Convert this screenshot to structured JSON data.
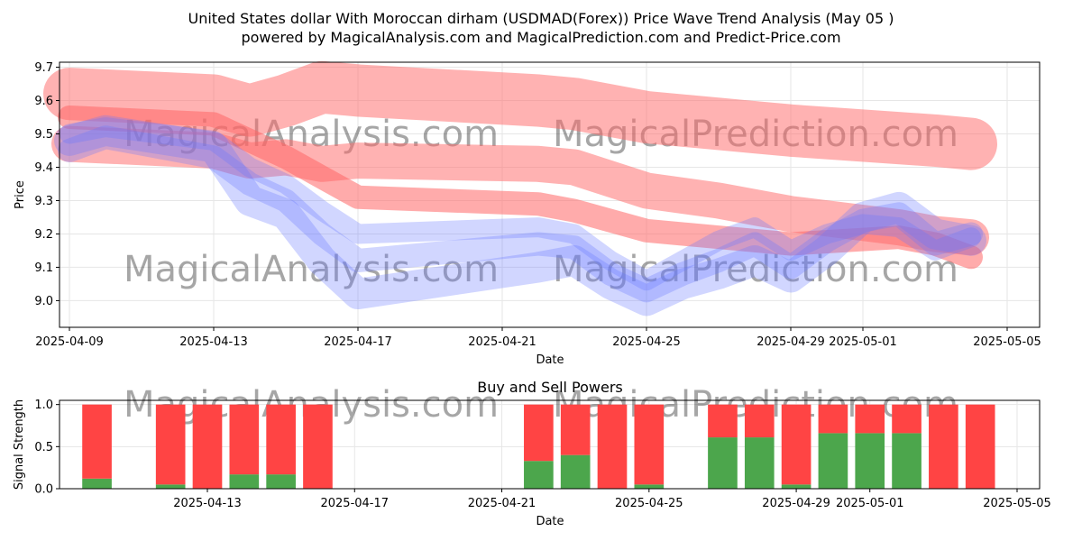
{
  "title_line1": "United States dollar With Moroccan dirham (USDMAD(Forex)) Price Wave Trend Analysis (May 05 )",
  "title_line2": "powered by MagicalAnalysis.com and MagicalPrediction.com and Predict-Price.com",
  "watermarks": [
    "MagicalAnalysis.com",
    "MagicalPrediction.com"
  ],
  "colors": {
    "upper_band": "#ff6666",
    "lower_band": "#6677ff",
    "buy": "#4ca64c",
    "sell": "#ff4444"
  },
  "chart_data": [
    {
      "type": "area",
      "title": "",
      "xlabel": "Date",
      "ylabel": "Price",
      "x_ticks": [
        "2025-04-09",
        "2025-04-13",
        "2025-04-17",
        "2025-04-21",
        "2025-04-25",
        "2025-04-29",
        "2025-05-01",
        "2025-05-05"
      ],
      "y_ticks": [
        9.0,
        9.1,
        9.2,
        9.3,
        9.4,
        9.5,
        9.6,
        9.7
      ],
      "ylim": [
        8.92,
        9.715
      ],
      "xlim": [
        "2025-04-09",
        "2025-05-05"
      ],
      "grid": true,
      "red_bands": [
        {
          "x": [
            "2025-04-09",
            "2025-04-13",
            "2025-04-14",
            "2025-04-15",
            "2025-04-16",
            "2025-04-17",
            "2025-04-22",
            "2025-04-23",
            "2025-04-25",
            "2025-04-27",
            "2025-04-28",
            "2025-04-29",
            "2025-05-03",
            "2025-05-04"
          ],
          "y": [
            9.62,
            9.6,
            9.57,
            9.6,
            9.64,
            9.63,
            9.6,
            9.59,
            9.55,
            9.53,
            9.52,
            9.51,
            9.48,
            9.47
          ]
        },
        {
          "x": [
            "2025-04-09",
            "2025-04-13",
            "2025-04-14",
            "2025-04-15",
            "2025-04-16",
            "2025-04-17",
            "2025-04-22",
            "2025-04-23",
            "2025-04-25",
            "2025-04-27",
            "2025-04-28",
            "2025-04-29",
            "2025-05-02",
            "2025-05-03",
            "2025-05-04"
          ],
          "y": [
            9.47,
            9.45,
            9.42,
            9.43,
            9.41,
            9.42,
            9.41,
            9.4,
            9.33,
            9.3,
            9.28,
            9.26,
            9.22,
            9.2,
            9.19
          ]
        },
        {
          "x": [
            "2025-04-09",
            "2025-04-13",
            "2025-04-14",
            "2025-04-15",
            "2025-04-16",
            "2025-04-17",
            "2025-04-22",
            "2025-04-23",
            "2025-04-25",
            "2025-04-29",
            "2025-05-02",
            "2025-05-03",
            "2025-05-04"
          ],
          "y": [
            9.55,
            9.53,
            9.48,
            9.43,
            9.37,
            9.31,
            9.29,
            9.27,
            9.21,
            9.17,
            9.19,
            9.17,
            9.13
          ]
        }
      ],
      "blue_bands": [
        {
          "x": [
            "2025-04-09",
            "2025-04-10",
            "2025-04-13",
            "2025-04-14",
            "2025-04-15",
            "2025-04-16",
            "2025-04-17",
            "2025-04-22",
            "2025-04-23",
            "2025-04-24",
            "2025-04-25",
            "2025-04-26",
            "2025-04-27",
            "2025-04-28",
            "2025-04-29",
            "2025-04-30",
            "2025-05-01",
            "2025-05-02",
            "2025-05-03",
            "2025-05-04"
          ],
          "y": [
            9.48,
            9.51,
            9.46,
            9.3,
            9.26,
            9.12,
            9.02,
            9.1,
            9.12,
            9.05,
            9.0,
            9.05,
            9.08,
            9.12,
            9.07,
            9.15,
            9.25,
            9.28,
            9.2,
            9.18
          ]
        },
        {
          "x": [
            "2025-04-09",
            "2025-04-10",
            "2025-04-13",
            "2025-04-14",
            "2025-04-15",
            "2025-04-16",
            "2025-04-17",
            "2025-04-22",
            "2025-04-23",
            "2025-04-24",
            "2025-04-25",
            "2025-04-26",
            "2025-04-27",
            "2025-04-28",
            "2025-04-29",
            "2025-04-30",
            "2025-05-01",
            "2025-05-02",
            "2025-05-03",
            "2025-05-04"
          ],
          "y": [
            9.45,
            9.49,
            9.43,
            9.35,
            9.3,
            9.2,
            9.12,
            9.17,
            9.16,
            9.08,
            9.03,
            9.08,
            9.12,
            9.17,
            9.1,
            9.18,
            9.24,
            9.26,
            9.17,
            9.2
          ]
        },
        {
          "x": [
            "2025-04-09",
            "2025-04-10",
            "2025-04-13",
            "2025-04-14",
            "2025-04-15",
            "2025-04-16",
            "2025-04-17",
            "2025-04-22",
            "2025-04-23",
            "2025-04-24",
            "2025-04-25",
            "2025-04-26",
            "2025-04-27",
            "2025-04-28",
            "2025-04-29",
            "2025-04-30",
            "2025-05-01",
            "2025-05-02",
            "2025-05-03",
            "2025-05-04"
          ],
          "y": [
            9.5,
            9.52,
            9.48,
            9.4,
            9.35,
            9.27,
            9.2,
            9.22,
            9.2,
            9.12,
            9.06,
            9.12,
            9.18,
            9.22,
            9.15,
            9.2,
            9.23,
            9.22,
            9.15,
            9.19
          ]
        }
      ]
    },
    {
      "type": "bar",
      "title": "Buy and Sell Powers",
      "xlabel": "Date",
      "ylabel": "Signal Strength",
      "x_ticks": [
        "2025-04-13",
        "2025-04-17",
        "2025-04-21",
        "2025-04-25",
        "2025-04-29",
        "2025-05-01",
        "2025-05-05"
      ],
      "y_ticks": [
        0.0,
        0.5,
        1.0
      ],
      "ylim": [
        0,
        1.05
      ],
      "xlim": [
        "2025-04-08",
        "2025-05-05"
      ],
      "grid": true,
      "categories": [
        "2025-04-10",
        "2025-04-12",
        "2025-04-13",
        "2025-04-14",
        "2025-04-15",
        "2025-04-16",
        "2025-04-22",
        "2025-04-23",
        "2025-04-24",
        "2025-04-25",
        "2025-04-27",
        "2025-04-28",
        "2025-04-29",
        "2025-04-30",
        "2025-05-01",
        "2025-05-02",
        "2025-05-03",
        "2025-05-04"
      ],
      "series": [
        {
          "name": "Buy",
          "values": [
            0.12,
            0.05,
            0.0,
            0.17,
            0.17,
            0.0,
            0.33,
            0.4,
            0.0,
            0.05,
            0.61,
            0.61,
            0.05,
            0.66,
            0.66,
            0.66,
            0.0,
            0.0
          ]
        },
        {
          "name": "Sell",
          "values": [
            0.88,
            0.95,
            1.0,
            0.83,
            0.83,
            1.0,
            0.67,
            0.6,
            1.0,
            0.95,
            0.39,
            0.39,
            0.95,
            0.34,
            0.34,
            0.34,
            1.0,
            1.0
          ]
        }
      ]
    }
  ]
}
